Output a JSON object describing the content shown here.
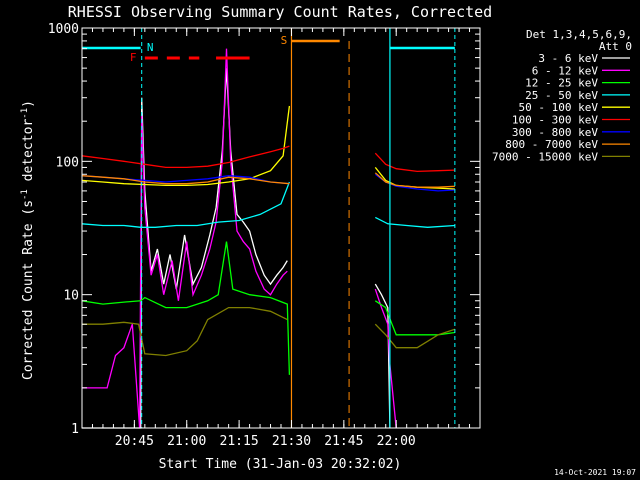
{
  "chart_data": {
    "type": "line",
    "title": "RHESSI Observing Summary Count Rates, Corrected",
    "xlabel": "Start Time (31-Jan-03 20:32:02)",
    "ylabel_main": "Corrected Count Rate (s",
    "ylabel_sup1": "-1",
    "ylabel_mid": " detector",
    "ylabel_sup2": "-1",
    "ylabel_end": ")",
    "y_scale": "log",
    "ylim": [
      1,
      1000
    ],
    "xlim_minutes": [
      20.5,
      22.4
    ],
    "x_tick_labels": [
      {
        "label": "20:45",
        "t": 20.75
      },
      {
        "label": "21:00",
        "t": 21.0
      },
      {
        "label": "21:15",
        "t": 21.25
      },
      {
        "label": "21:30",
        "t": 21.5
      },
      {
        "label": "21:45",
        "t": 21.75
      },
      {
        "label": "22:00",
        "t": 22.0
      }
    ],
    "y_tick_labels": [
      {
        "label": "1",
        "v": 1
      },
      {
        "label": "10",
        "v": 10
      },
      {
        "label": "100",
        "v": 100
      },
      {
        "label": "1000",
        "v": 1000
      }
    ],
    "legend_header": [
      "Det 1,3,4,5,6,9,",
      "Att 0"
    ],
    "legend_position": "right",
    "series": [
      {
        "name": "3 - 6 keV",
        "color": "#ffffff",
        "segments": [
          [
            [
              20.5,
              1
            ],
            [
              20.78,
              1
            ],
            [
              20.785,
              300
            ],
            [
              20.8,
              60
            ],
            [
              20.83,
              15
            ],
            [
              20.86,
              22
            ],
            [
              20.89,
              12
            ],
            [
              20.92,
              20
            ],
            [
              20.95,
              11
            ],
            [
              20.99,
              28
            ],
            [
              21.03,
              12
            ],
            [
              21.07,
              16
            ],
            [
              21.11,
              28
            ],
            [
              21.14,
              45
            ],
            [
              21.17,
              120
            ],
            [
              21.19,
              500
            ],
            [
              21.21,
              120
            ],
            [
              21.24,
              40
            ],
            [
              21.27,
              35
            ],
            [
              21.3,
              30
            ],
            [
              21.33,
              20
            ],
            [
              21.37,
              14
            ],
            [
              21.4,
              12
            ],
            [
              21.43,
              14
            ],
            [
              21.46,
              16
            ],
            [
              21.48,
              18
            ]
          ],
          [
            [
              21.9,
              12
            ],
            [
              21.93,
              10
            ],
            [
              21.96,
              8
            ],
            [
              21.97,
              1
            ]
          ]
        ]
      },
      {
        "name": "6 - 12 keV",
        "color": "#ff00ff",
        "segments": [
          [
            [
              20.5,
              2
            ],
            [
              20.62,
              2
            ],
            [
              20.66,
              3.5
            ],
            [
              20.7,
              4
            ],
            [
              20.74,
              6
            ],
            [
              20.775,
              1
            ],
            [
              20.785,
              220
            ],
            [
              20.8,
              45
            ],
            [
              20.83,
              14
            ],
            [
              20.86,
              20
            ],
            [
              20.89,
              10
            ],
            [
              20.93,
              18
            ],
            [
              20.96,
              9
            ],
            [
              21.0,
              25
            ],
            [
              21.03,
              10
            ],
            [
              21.07,
              14
            ],
            [
              21.11,
              22
            ],
            [
              21.14,
              35
            ],
            [
              21.17,
              100
            ],
            [
              21.19,
              700
            ],
            [
              21.21,
              100
            ],
            [
              21.24,
              30
            ],
            [
              21.27,
              25
            ],
            [
              21.3,
              22
            ],
            [
              21.33,
              15
            ],
            [
              21.37,
              11
            ],
            [
              21.4,
              10
            ],
            [
              21.43,
              12
            ],
            [
              21.46,
              14
            ],
            [
              21.48,
              15
            ]
          ],
          [
            [
              21.9,
              11
            ],
            [
              21.93,
              8
            ],
            [
              21.96,
              6
            ],
            [
              21.97,
              3
            ],
            [
              22.0,
              1
            ]
          ]
        ]
      },
      {
        "name": "12 - 25 keV",
        "color": "#00ff00",
        "segments": [
          [
            [
              20.5,
              9
            ],
            [
              20.6,
              8.5
            ],
            [
              20.7,
              8.8
            ],
            [
              20.78,
              9
            ],
            [
              20.8,
              9.5
            ],
            [
              20.9,
              8
            ],
            [
              21.0,
              8
            ],
            [
              21.1,
              9
            ],
            [
              21.15,
              10
            ],
            [
              21.19,
              25
            ],
            [
              21.22,
              11
            ],
            [
              21.3,
              10
            ],
            [
              21.4,
              9.5
            ],
            [
              21.48,
              8.5
            ],
            [
              21.49,
              2.5
            ]
          ],
          [
            [
              21.9,
              9
            ],
            [
              21.95,
              8
            ],
            [
              21.98,
              6
            ],
            [
              22.0,
              5
            ],
            [
              22.1,
              5
            ],
            [
              22.2,
              5
            ],
            [
              22.28,
              5.2
            ]
          ]
        ]
      },
      {
        "name": "25 - 50 keV",
        "color": "#00ffff",
        "segments": [
          [
            [
              20.5,
              34
            ],
            [
              20.6,
              33
            ],
            [
              20.7,
              33
            ],
            [
              20.78,
              32
            ],
            [
              20.85,
              32
            ],
            [
              20.95,
              33
            ],
            [
              21.05,
              33
            ],
            [
              21.15,
              35
            ],
            [
              21.25,
              36
            ],
            [
              21.35,
              40
            ],
            [
              21.45,
              48
            ],
            [
              21.49,
              70
            ]
          ],
          [
            [
              21.9,
              38
            ],
            [
              21.96,
              34
            ],
            [
              22.05,
              33
            ],
            [
              22.15,
              32
            ],
            [
              22.28,
              33
            ]
          ]
        ]
      },
      {
        "name": "50 - 100 keV",
        "color": "#ffff00",
        "segments": [
          [
            [
              20.5,
              72
            ],
            [
              20.6,
              70
            ],
            [
              20.7,
              68
            ],
            [
              20.8,
              67
            ],
            [
              20.9,
              66
            ],
            [
              21.0,
              66
            ],
            [
              21.1,
              67
            ],
            [
              21.2,
              70
            ],
            [
              21.3,
              74
            ],
            [
              21.4,
              85
            ],
            [
              21.46,
              110
            ],
            [
              21.49,
              260
            ]
          ],
          [
            [
              21.9,
              90
            ],
            [
              21.95,
              72
            ],
            [
              22.0,
              66
            ],
            [
              22.1,
              64
            ],
            [
              22.2,
              63
            ],
            [
              22.28,
              62
            ]
          ]
        ]
      },
      {
        "name": "100 - 300 keV",
        "color": "#ff0000",
        "segments": [
          [
            [
              20.5,
              110
            ],
            [
              20.6,
              105
            ],
            [
              20.7,
              100
            ],
            [
              20.8,
              95
            ],
            [
              20.9,
              90
            ],
            [
              21.0,
              90
            ],
            [
              21.1,
              92
            ],
            [
              21.2,
              98
            ],
            [
              21.3,
              108
            ],
            [
              21.4,
              118
            ],
            [
              21.46,
              125
            ],
            [
              21.49,
              130
            ]
          ],
          [
            [
              21.9,
              115
            ],
            [
              21.95,
              95
            ],
            [
              22.0,
              88
            ],
            [
              22.1,
              84
            ],
            [
              22.2,
              85
            ],
            [
              22.28,
              86
            ]
          ]
        ]
      },
      {
        "name": "300 - 800 keV",
        "color": "#0000ff",
        "segments": [
          [
            [
              20.5,
              78
            ],
            [
              20.6,
              76
            ],
            [
              20.7,
              74
            ],
            [
              20.8,
              72
            ],
            [
              20.9,
              70
            ],
            [
              21.0,
              72
            ],
            [
              21.1,
              74
            ],
            [
              21.2,
              78
            ],
            [
              21.3,
              76
            ],
            [
              21.4,
              70
            ],
            [
              21.49,
              68
            ]
          ],
          [
            [
              21.9,
              80
            ],
            [
              21.95,
              70
            ],
            [
              22.0,
              65
            ],
            [
              22.1,
              62
            ],
            [
              22.2,
              60
            ],
            [
              22.28,
              61
            ]
          ]
        ]
      },
      {
        "name": "800 - 7000 keV",
        "color": "#ff8800",
        "segments": [
          [
            [
              20.5,
              78
            ],
            [
              20.6,
              76
            ],
            [
              20.7,
              74
            ],
            [
              20.8,
              70
            ],
            [
              20.9,
              68
            ],
            [
              21.0,
              68
            ],
            [
              21.1,
              70
            ],
            [
              21.2,
              76
            ],
            [
              21.3,
              74
            ],
            [
              21.4,
              70
            ],
            [
              21.49,
              68
            ]
          ],
          [
            [
              21.9,
              82
            ],
            [
              21.95,
              70
            ],
            [
              22.0,
              66
            ],
            [
              22.1,
              64
            ],
            [
              22.2,
              64
            ],
            [
              22.28,
              65
            ]
          ]
        ]
      },
      {
        "name": "7000 - 15000 keV",
        "color": "#808000",
        "segments": [
          [
            [
              20.5,
              6
            ],
            [
              20.6,
              6
            ],
            [
              20.7,
              6.2
            ],
            [
              20.77,
              6
            ],
            [
              20.8,
              3.6
            ],
            [
              20.9,
              3.5
            ],
            [
              21.0,
              3.8
            ],
            [
              21.05,
              4.5
            ],
            [
              21.1,
              6.5
            ],
            [
              21.2,
              8
            ],
            [
              21.3,
              8
            ],
            [
              21.4,
              7.5
            ],
            [
              21.48,
              6.5
            ]
          ],
          [
            [
              21.9,
              6
            ],
            [
              21.95,
              5
            ],
            [
              22.0,
              4
            ],
            [
              22.1,
              4
            ],
            [
              22.2,
              5
            ],
            [
              22.28,
              5.5
            ]
          ]
        ]
      }
    ],
    "annotations": [
      {
        "label": "N",
        "color": "#00ffff"
      },
      {
        "label": "F",
        "color": "#ff0000"
      },
      {
        "label": "S",
        "color": "#ff8800"
      }
    ],
    "footer_date": "14-Oct-2021 19:07"
  }
}
